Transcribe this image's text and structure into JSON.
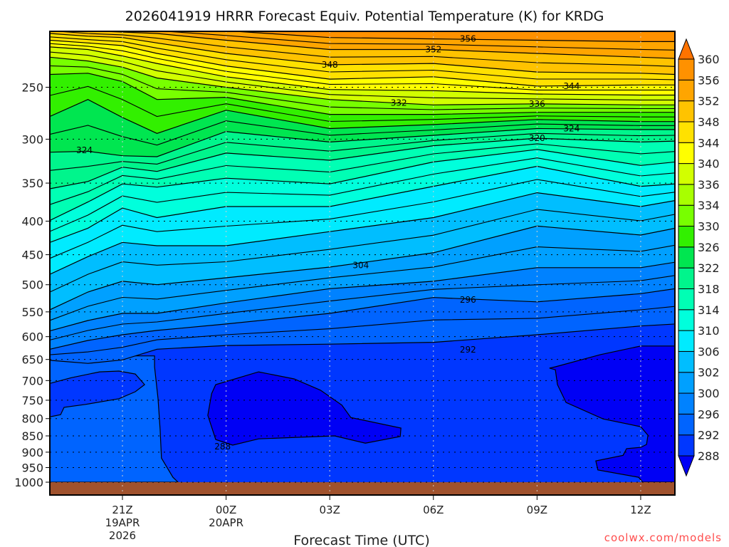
{
  "title": "2026041919 HRRR Forecast Equiv. Potential Temperature (K) for KRDG",
  "watermark": "coolwx.com/models",
  "chart_data": {
    "type": "heatmap",
    "style": "filled contour, time-height cross section",
    "title": "2026041919 HRRR Forecast Equiv. Potential Temperature (K) for KRDG",
    "xlabel": "Forecast Time (UTC)",
    "ylabel": "",
    "x_unit": "hours since 19Z 19APR2026",
    "xlim": [
      -0.1,
      18
    ],
    "y_unit": "hPa",
    "y_scale": "log",
    "ylim": [
      1046,
      205
    ],
    "grid": true,
    "yticks": [
      250,
      300,
      350,
      400,
      450,
      500,
      550,
      600,
      650,
      700,
      750,
      800,
      850,
      900,
      950,
      1000
    ],
    "xticks": [
      {
        "hour": 2,
        "label": "21Z",
        "date": "19APR",
        "year": "2026"
      },
      {
        "hour": 5,
        "label": "00Z",
        "date": "20APR"
      },
      {
        "hour": 8,
        "label": "03Z"
      },
      {
        "hour": 11,
        "label": "06Z"
      },
      {
        "hour": 14,
        "label": "09Z"
      },
      {
        "hour": 17,
        "label": "12Z"
      }
    ],
    "colorbar": {
      "levels": [
        288,
        292,
        296,
        300,
        302,
        306,
        310,
        314,
        318,
        322,
        326,
        330,
        334,
        336,
        340,
        344,
        348,
        352,
        356,
        360
      ],
      "colors": [
        "#0037ff",
        "#0064ff",
        "#0082ff",
        "#00a0ff",
        "#00beff",
        "#00ebff",
        "#00ffdc",
        "#00ffb4",
        "#00f58c",
        "#00e650",
        "#32f000",
        "#78ff00",
        "#a8ff00",
        "#d2ff00",
        "#ffff00",
        "#ffe100",
        "#ffc300",
        "#ffa500",
        "#ff9100"
      ],
      "under": "#0000f5",
      "over": "#ff7300",
      "placement": "right"
    },
    "ground_pressure": 1000,
    "ground_color": "#a0522d",
    "contour_interval": 2,
    "contour_hours": [
      -0.1,
      1,
      2,
      3,
      5,
      8,
      11,
      14,
      17,
      18
    ],
    "contours": [
      {
        "level": 292,
        "pressure": [
          652,
          659,
          651,
          627,
          619,
          616,
          612,
          596,
          578,
          574
        ]
      },
      {
        "level": 296,
        "pressure": [
          627,
          608,
          596,
          587,
          574,
          553,
          523,
          531,
          516,
          507
        ]
      },
      {
        "level": 300,
        "pressure": [
          588,
          567,
          553,
          553,
          533,
          507,
          494,
          471,
          471,
          462
        ]
      },
      {
        "level": 304,
        "pressure": [
          546,
          513,
          494,
          500,
          488,
          470,
          447,
          407,
          420,
          410
        ]
      },
      {
        "level": 308,
        "pressure": [
          482,
          453,
          431,
          436,
          436,
          415,
          395,
          362,
          380,
          372
        ]
      },
      {
        "level": 312,
        "pressure": [
          431,
          410,
          382,
          395,
          380,
          380,
          354,
          330,
          354,
          351
        ]
      },
      {
        "level": 316,
        "pressure": [
          399,
          374,
          351,
          355,
          344,
          351,
          325,
          311,
          329,
          325
        ]
      },
      {
        "level": 320,
        "pressure": [
          357,
          348,
          331,
          336,
          315,
          323,
          307,
          299,
          303,
          302
        ]
      },
      {
        "level": 324,
        "pressure": [
          314,
          313,
          318,
          319,
          292,
          303,
          296,
          289,
          290,
          290
        ]
      },
      {
        "level": 328,
        "pressure": [
          277,
          261,
          278,
          294,
          271,
          289,
          285,
          280,
          282,
          282
        ]
      },
      {
        "level": 332,
        "pressure": [
          239,
          238,
          245,
          261,
          259,
          275,
          275,
          273,
          273,
          273
        ]
      },
      {
        "level": 336,
        "pressure": [
          225,
          228,
          233,
          242,
          250,
          261,
          266,
          265,
          266,
          266
        ]
      },
      {
        "level": 340,
        "pressure": [
          217,
          219,
          224,
          230,
          241,
          252,
          253,
          256,
          257,
          257
        ]
      },
      {
        "level": 344,
        "pressure": [
          212,
          214,
          216,
          222,
          232,
          243,
          241,
          249,
          248,
          248
        ]
      },
      {
        "level": 348,
        "pressure": [
          207,
          209,
          210,
          214,
          222,
          231,
          230,
          237,
          238,
          239
        ]
      },
      {
        "level": 352,
        "pressure": [
          203,
          205,
          206,
          207,
          212,
          219,
          219,
          222,
          225,
          226
        ]
      },
      {
        "level": 356,
        "pressure": [
          200,
          201,
          202,
          203,
          205,
          210,
          211,
          212,
          213,
          213
        ]
      }
    ],
    "regions": [
      {
        "range": "292-296",
        "value": 294,
        "points": [
          [
            -0.1,
            642
          ],
          [
            2.93,
            642
          ],
          [
            2.93,
            667
          ],
          [
            3.03,
            746
          ],
          [
            3.09,
            831
          ],
          [
            3.13,
            919
          ],
          [
            3.46,
            983
          ],
          [
            3.61,
            1000
          ],
          [
            -0.1,
            1000
          ]
        ]
      },
      {
        "range": "288-292",
        "value": 290,
        "points": [
          [
            -0.1,
            707
          ],
          [
            0.52,
            693
          ],
          [
            1.34,
            679
          ],
          [
            1.9,
            677
          ],
          [
            2.37,
            684
          ],
          [
            2.64,
            710
          ],
          [
            2.37,
            728
          ],
          [
            1.9,
            746
          ],
          [
            0.93,
            761
          ],
          [
            0.31,
            769
          ],
          [
            0.21,
            789
          ],
          [
            -0.1,
            795
          ]
        ]
      },
      {
        "range": "<288",
        "value": 286,
        "points": [
          [
            4.58,
            733
          ],
          [
            4.7,
            710
          ],
          [
            5.94,
            679
          ],
          [
            6.97,
            696
          ],
          [
            7.73,
            724
          ],
          [
            8.35,
            763
          ],
          [
            8.61,
            797
          ],
          [
            10.06,
            827
          ],
          [
            10.04,
            852
          ],
          [
            9.03,
            872
          ],
          [
            8.14,
            850
          ],
          [
            5.94,
            859
          ],
          [
            5.19,
            878
          ],
          [
            4.7,
            861
          ],
          [
            4.47,
            791
          ]
        ]
      },
      {
        "range": "<288",
        "value": 286,
        "points": [
          [
            14.36,
            670
          ],
          [
            14.53,
            674
          ],
          [
            14.59,
            710
          ],
          [
            14.84,
            756
          ],
          [
            15.91,
            801
          ],
          [
            17.0,
            823
          ],
          [
            17.21,
            848
          ],
          [
            17.17,
            876
          ],
          [
            17.0,
            885
          ],
          [
            16.59,
            889
          ],
          [
            16.49,
            910
          ],
          [
            15.7,
            928
          ],
          [
            15.76,
            958
          ],
          [
            16.94,
            983
          ],
          [
            17.06,
            1000
          ],
          [
            18.1,
            1000
          ],
          [
            18.1,
            620
          ],
          [
            17.0,
            620
          ],
          [
            15.83,
            639
          ],
          [
            14.53,
            667
          ]
        ]
      }
    ],
    "labels": [
      {
        "text": "356",
        "hour": 12.0,
        "pressure": 211
      },
      {
        "text": "352",
        "hour": 11.0,
        "pressure": 219
      },
      {
        "text": "348",
        "hour": 8.0,
        "pressure": 231
      },
      {
        "text": "344",
        "hour": 15.0,
        "pressure": 249
      },
      {
        "text": "336",
        "hour": 14.0,
        "pressure": 265
      },
      {
        "text": "332",
        "hour": 10.0,
        "pressure": 264
      },
      {
        "text": "324",
        "hour": 15.0,
        "pressure": 289
      },
      {
        "text": "320",
        "hour": 14.0,
        "pressure": 299
      },
      {
        "text": "324",
        "hour": 0.9,
        "pressure": 312
      },
      {
        "text": "304",
        "hour": 8.9,
        "pressure": 467
      },
      {
        "text": "296",
        "hour": 12.0,
        "pressure": 527
      },
      {
        "text": "292",
        "hour": 12.0,
        "pressure": 628
      },
      {
        "text": "288",
        "hour": 4.9,
        "pressure": 882
      }
    ]
  }
}
